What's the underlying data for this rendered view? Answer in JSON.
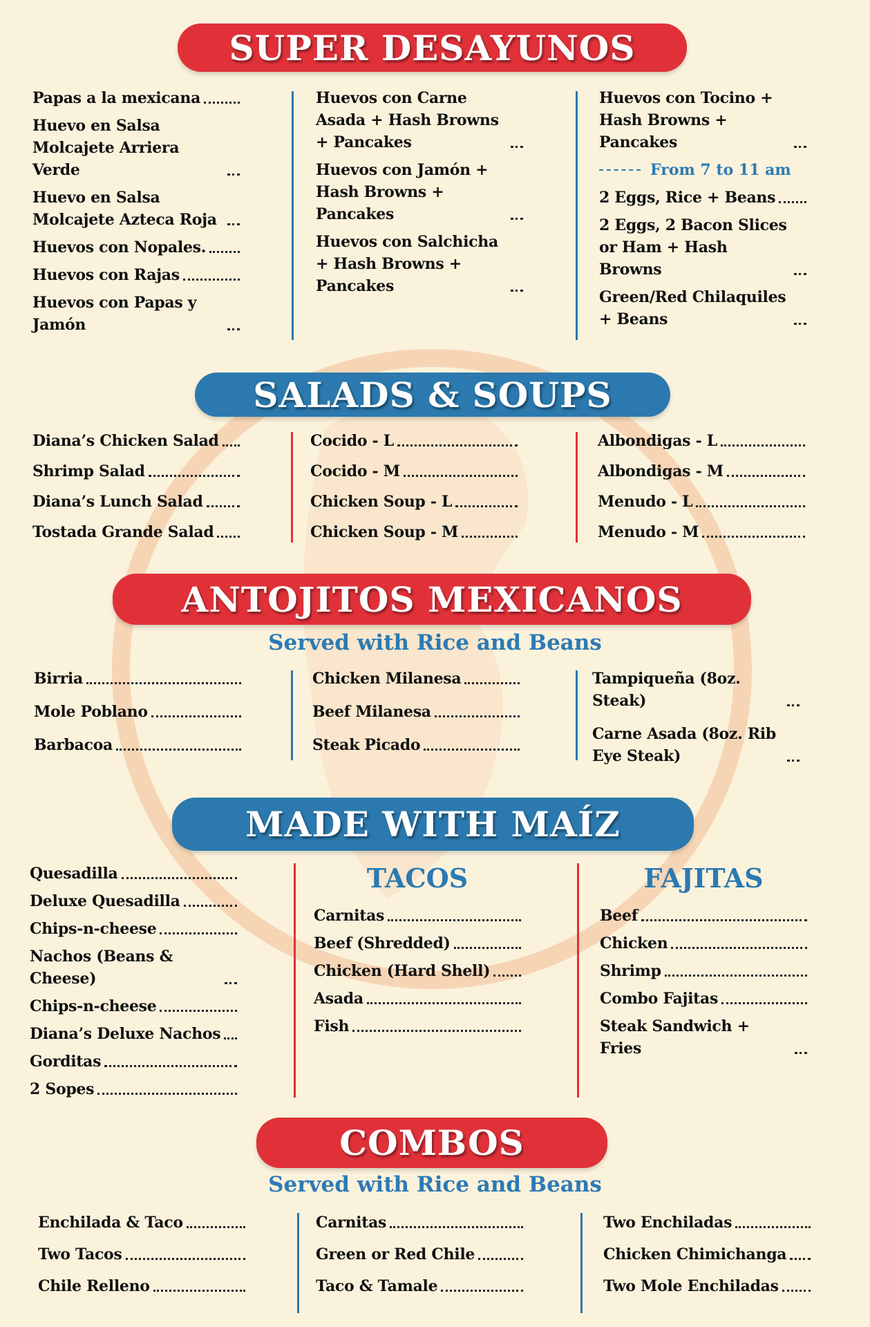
{
  "sections": [
    {
      "title": "SUPER DESAYUNOS",
      "columns": [
        {
          "items": [
            "Papas a la mexicana",
            "Huevo en Salsa Molcajete Arriera Verde",
            "Huevo en Salsa Molcajete Azteca Roja",
            "Huevos con Nopales.",
            "Huevos con Rajas",
            "Huevos con Papas y Jamón"
          ]
        },
        {
          "items": [
            "Huevos con Carne Asada + Hash Browns + Pancakes",
            "Huevos con Jamón + Hash Browns + Pancakes",
            "Huevos con Salchicha + Hash Browns + Pancakes"
          ]
        },
        {
          "items": [
            "Huevos con Tocino + Hash Browns + Pancakes",
            {
              "note": "From 7 to 11 am"
            },
            "2 Eggs, Rice + Beans",
            "2 Eggs, 2 Bacon Slices or Ham + Hash Browns",
            "Green/Red Chilaquiles + Beans"
          ]
        }
      ]
    },
    {
      "title": "SALADS & SOUPS",
      "columns": [
        {
          "items": [
            "Diana’s Chicken Salad",
            "Shrimp Salad",
            "Diana’s Lunch Salad",
            "Tostada Grande Salad"
          ]
        },
        {
          "items": [
            "Cocido - L",
            "Cocido - M",
            "Chicken Soup - L",
            "Chicken Soup - M"
          ]
        },
        {
          "items": [
            "Albondigas - L",
            "Albondigas - M",
            "Menudo - L",
            "Menudo - M"
          ]
        }
      ]
    },
    {
      "title": "ANTOJITOS MEXICANOS",
      "subtitle": "Served with Rice and Beans",
      "columns": [
        {
          "items": [
            "Birria",
            "Mole Poblano",
            "Barbacoa"
          ]
        },
        {
          "items": [
            "Chicken Milanesa",
            "Beef Milanesa",
            "Steak Picado"
          ]
        },
        {
          "items": [
            "Tampiqueña (8oz. Steak)",
            "Carne Asada (8oz. Rib Eye Steak)"
          ]
        }
      ]
    },
    {
      "title": "MADE WITH MAÍZ",
      "columns": [
        {
          "items": [
            "Quesadilla",
            "Deluxe Quesadilla",
            "Chips-n-cheese",
            "Nachos (Beans & Cheese)",
            "Chips-n-cheese",
            "Diana’s Deluxe Nachos",
            "Gorditas",
            "2 Sopes"
          ]
        },
        {
          "heading": "TACOS",
          "items": [
            "Carnitas",
            "Beef (Shredded)",
            "Chicken (Hard Shell)",
            "Asada",
            "Fish"
          ]
        },
        {
          "heading": "FAJITAS",
          "items": [
            "Beef",
            "Chicken",
            "Shrimp",
            "Combo Fajitas",
            "Steak Sandwich + Fries"
          ]
        }
      ]
    },
    {
      "title": "COMBOS",
      "subtitle": "Served with Rice and Beans",
      "columns": [
        {
          "items": [
            "Enchilada & Taco",
            "Two Tacos",
            "Chile Relleno"
          ]
        },
        {
          "items": [
            "Carnitas",
            "Green or Red Chile",
            "Taco & Tamale"
          ]
        },
        {
          "items": [
            "Two Enchiladas",
            "Chicken Chimichanga",
            "Two Mole Enchiladas"
          ]
        }
      ]
    }
  ]
}
